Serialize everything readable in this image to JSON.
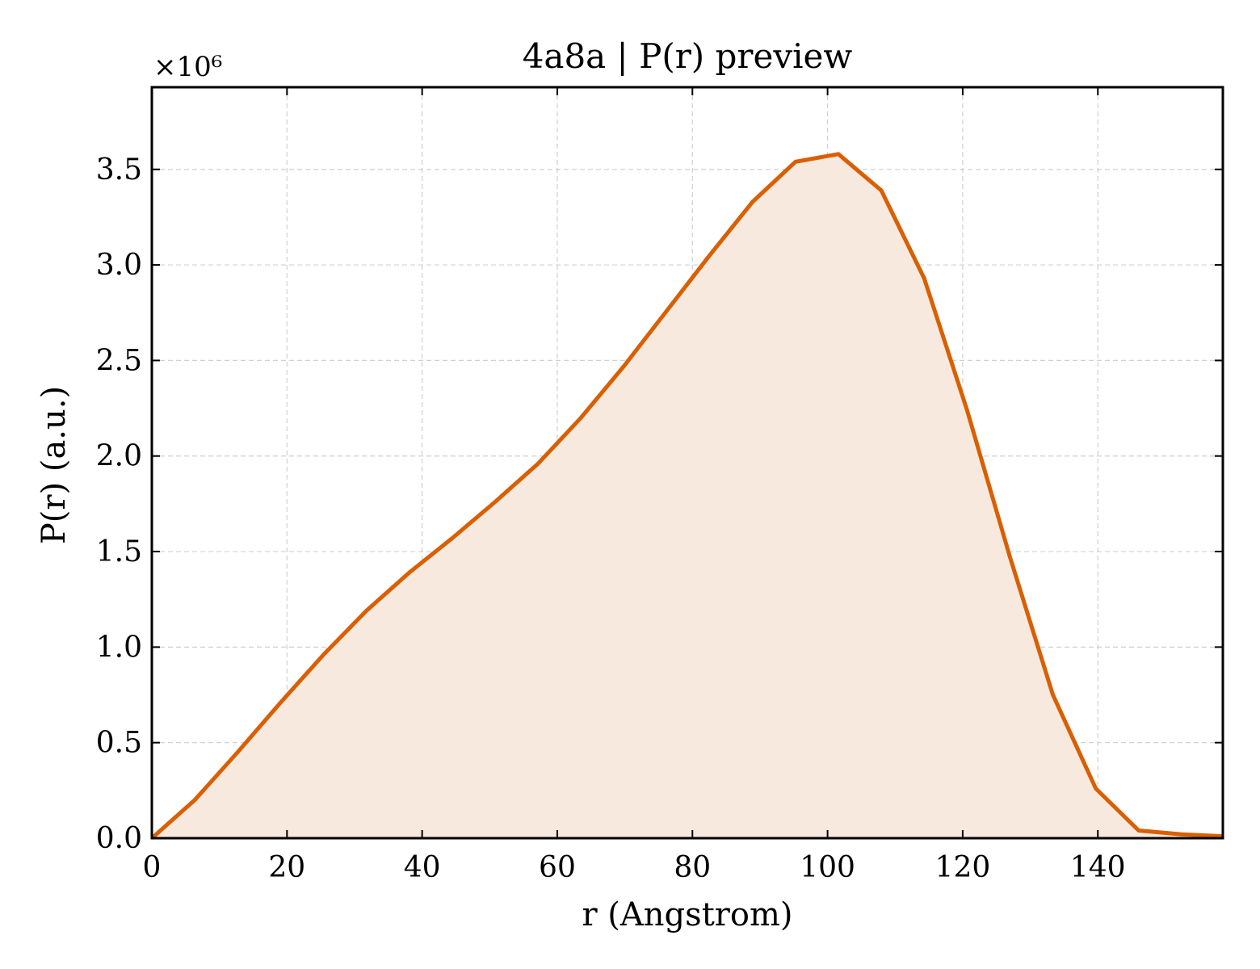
{
  "chart_data": {
    "type": "area",
    "title": "4a8a | P(r) preview",
    "xlabel": "r (Angstrom)",
    "ylabel": "P(r) (a.u.)",
    "y_offset_label": "×10⁶",
    "y_scale": 1000000,
    "xlim": [
      0,
      158.5
    ],
    "ylim": [
      0,
      3.93
    ],
    "xticks": [
      0,
      20,
      40,
      60,
      80,
      100,
      120,
      140
    ],
    "yticks": [
      0.0,
      0.5,
      1.0,
      1.5,
      2.0,
      2.5,
      3.0,
      3.5
    ],
    "grid": true,
    "line_color": "#d95f02",
    "fill_color": "#f8e9de",
    "series": [
      {
        "x": [
          0,
          6.35,
          12.7,
          19.05,
          25.4,
          31.75,
          38.1,
          44.45,
          50.8,
          57.15,
          63.5,
          69.85,
          76.2,
          82.55,
          88.9,
          95.25,
          101.6,
          107.95,
          114.3,
          120.65,
          127.0,
          133.35,
          139.7,
          146.05,
          152.4,
          158.5
        ],
        "y": [
          0.0,
          0.2,
          0.45,
          0.71,
          0.96,
          1.19,
          1.39,
          1.57,
          1.76,
          1.96,
          2.2,
          2.47,
          2.76,
          3.05,
          3.33,
          3.54,
          3.58,
          3.39,
          2.93,
          2.24,
          1.47,
          0.75,
          0.26,
          0.04,
          0.02,
          0.01
        ]
      }
    ]
  }
}
